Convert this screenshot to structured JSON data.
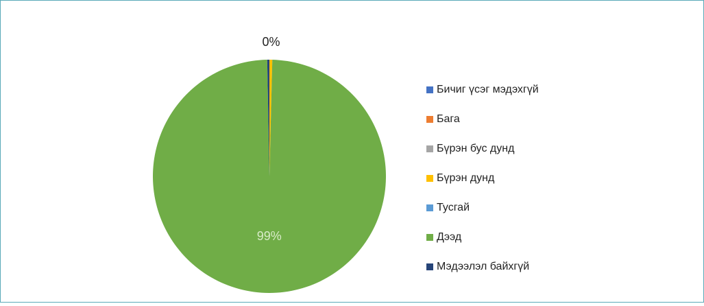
{
  "chart_data": {
    "type": "pie",
    "categories": [
      "Бичиг үсэг мэдэхгүй",
      "Бага",
      "Бүрэн бус дунд",
      "Бүрэн дунд",
      "Тусгай",
      "Дээд",
      "Мэдээлэл байхгүй"
    ],
    "values": [
      0,
      0,
      0,
      0.4,
      0,
      99.3,
      0.3
    ],
    "value_labels": [
      null,
      null,
      null,
      "0%",
      null,
      "99%",
      null
    ],
    "colors": [
      "#4472c4",
      "#ed7d31",
      "#a5a5a5",
      "#ffc000",
      "#5b9bd5",
      "#70ad47",
      "#264478"
    ],
    "legend": "right"
  }
}
